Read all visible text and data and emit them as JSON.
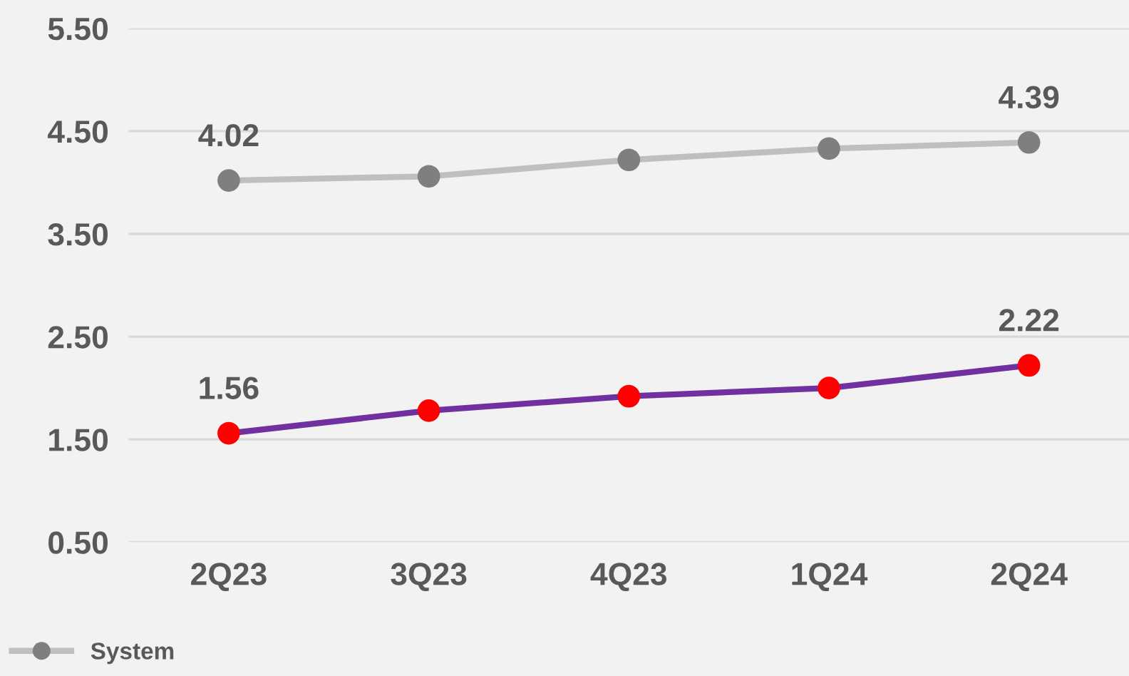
{
  "chart_data": {
    "type": "line",
    "categories": [
      "2Q23",
      "3Q23",
      "4Q23",
      "1Q24",
      "2Q24"
    ],
    "series": [
      {
        "name": "System",
        "color": "#bfbfbf",
        "colors": [
          "#7f7f7f",
          "#7f7f7f",
          "#7f7f7f",
          "#7f7f7f",
          "#7f7f7f"
        ],
        "values": [
          4.02,
          4.06,
          4.22,
          4.33,
          4.39
        ],
        "value_labels": [
          "4.02",
          null,
          null,
          null,
          "4.39"
        ]
      },
      {
        "color": "#7030a0",
        "colors": [
          "#ff0000",
          "#ff0000",
          "#ff0000",
          "#ff0000",
          "#ff0000"
        ],
        "values": [
          1.56,
          1.78,
          1.92,
          2.0,
          2.22
        ],
        "value_labels": [
          "1.56",
          null,
          null,
          null,
          "2.22"
        ]
      }
    ],
    "ylim": [
      0.5,
      5.5
    ],
    "yticks": [
      {
        "value": 0.5,
        "label": "0.50"
      },
      {
        "value": 1.5,
        "label": "1.50"
      },
      {
        "value": 2.5,
        "label": "2.50"
      },
      {
        "value": 3.5,
        "label": "3.50"
      },
      {
        "value": 4.5,
        "label": "4.50"
      },
      {
        "value": 5.5,
        "label": "5.50"
      }
    ],
    "grid": "y",
    "legend": "bottom left",
    "marker": "circle",
    "line_style": "solid"
  }
}
